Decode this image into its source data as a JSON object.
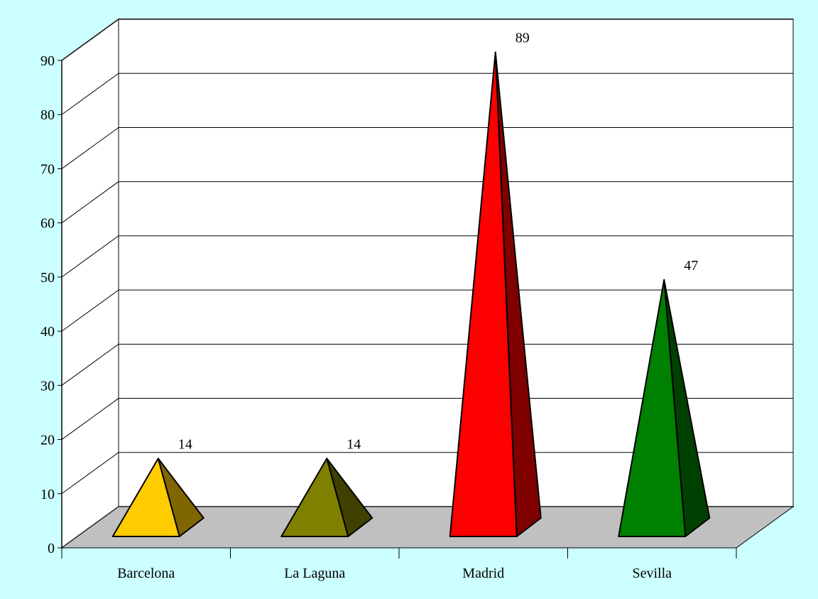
{
  "chart_data": {
    "type": "bar",
    "style": "3d-pyramid",
    "categories": [
      "Barcelona",
      "La Laguna",
      "Madrid",
      "Sevilla"
    ],
    "values": [
      14,
      14,
      89,
      47
    ],
    "data_labels": [
      "14",
      "14",
      "89",
      "47"
    ],
    "colors": {
      "front": [
        "#ffcc00",
        "#808000",
        "#ff0000",
        "#008000"
      ],
      "side": [
        "#806600",
        "#404000",
        "#800000",
        "#004000"
      ]
    },
    "ylim": [
      0,
      90
    ],
    "yticks": [
      0,
      10,
      20,
      30,
      40,
      50,
      60,
      70,
      80,
      90
    ],
    "title": "",
    "xlabel": "",
    "ylabel": "",
    "grid": true,
    "legend": "none",
    "background": "#ccffff",
    "floor_color": "#c0c0c0",
    "wall_color": "#ffffff"
  }
}
